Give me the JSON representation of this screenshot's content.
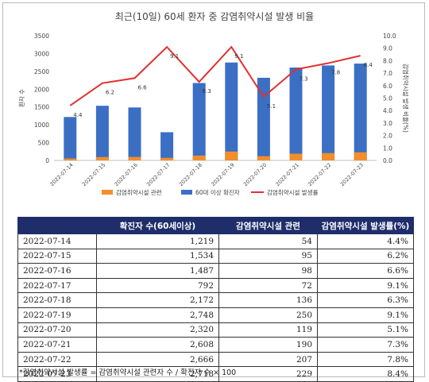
{
  "chart_data": {
    "type": "bar",
    "title": "최근(10일) 60세 환자 중 감염취약시설 발생 비율",
    "ylabel_left": "환자 수",
    "ylabel_right": "감염취약시설 발생 비율(%)",
    "categories": [
      "2022-07-14",
      "2022-07-15",
      "2022-07-16",
      "2022-07-17",
      "2022-07-18",
      "2022-07-19",
      "2022-07-20",
      "2022-07-21",
      "2022-07-22",
      "2022-07-23"
    ],
    "left_ylim": [
      0,
      3500
    ],
    "left_ticks": [
      "0",
      "500",
      "1000",
      "1500",
      "2000",
      "2500",
      "3000",
      "3500"
    ],
    "right_ylim": [
      0,
      10
    ],
    "right_ticks": [
      "0.0",
      "1.0",
      "2.0",
      "3.0",
      "4.0",
      "5.0",
      "6.0",
      "7.0",
      "8.0",
      "9.0",
      "10.0"
    ],
    "series": [
      {
        "name": "감염취약시설 관련",
        "type": "bar",
        "color": "#f28e2b",
        "values": [
          54,
          95,
          98,
          72,
          136,
          250,
          119,
          190,
          207,
          229
        ]
      },
      {
        "name": "60대 이상 확진자",
        "type": "bar",
        "color": "#3a6fc4",
        "values": [
          1219,
          1534,
          1487,
          792,
          2172,
          2748,
          2320,
          2608,
          2666,
          2718
        ]
      },
      {
        "name": "감염취약시설 발생률",
        "type": "line",
        "axis": "right",
        "color": "#e03030",
        "values": [
          4.4,
          6.2,
          6.6,
          9.1,
          6.3,
          9.1,
          5.1,
          7.3,
          7.8,
          8.4
        ]
      }
    ],
    "line_labels": [
      "4.4",
      "6.2",
      "6.6",
      "9.1",
      "6.3",
      "9.1",
      "5.1",
      "7.3",
      "7.8",
      "8.4"
    ],
    "legend_position": "bottom",
    "grid": false
  },
  "table": {
    "headers": [
      "",
      "확진자 수(60세이상)",
      "감염취약시설 관련",
      "감염취약시설 발생률(%)"
    ],
    "rows": [
      [
        "2022-07-14",
        "1,219",
        "54",
        "4.4%"
      ],
      [
        "2022-07-15",
        "1,534",
        "95",
        "6.2%"
      ],
      [
        "2022-07-16",
        "1,487",
        "98",
        "6.6%"
      ],
      [
        "2022-07-17",
        "792",
        "72",
        "9.1%"
      ],
      [
        "2022-07-18",
        "2,172",
        "136",
        "6.3%"
      ],
      [
        "2022-07-19",
        "2,748",
        "250",
        "9.1%"
      ],
      [
        "2022-07-20",
        "2,320",
        "119",
        "5.1%"
      ],
      [
        "2022-07-21",
        "2,608",
        "190",
        "7.3%"
      ],
      [
        "2022-07-22",
        "2,666",
        "207",
        "7.8%"
      ],
      [
        "2022-07-23",
        "2,718",
        "229",
        "8.4%"
      ]
    ]
  },
  "footnote": "*감염취약시설 발생률 = 감염취약시설 관련자 수 / 확진자 수 × 100"
}
